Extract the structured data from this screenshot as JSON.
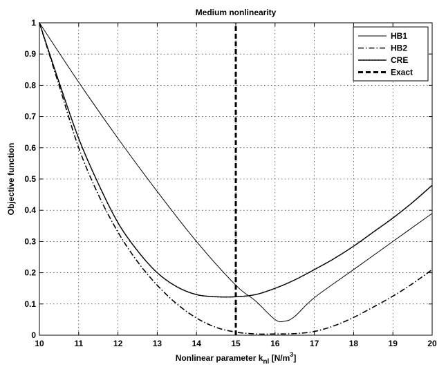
{
  "chart_data": {
    "type": "line",
    "title": "Medium nonlinearity",
    "xlabel": {
      "main": "Nonlinear parameter  k",
      "sub": "nl",
      "unit_open": " [N/m",
      "sup": "3",
      "unit_close": "]"
    },
    "ylabel": "Objective function",
    "xlim": [
      10,
      20
    ],
    "ylim": [
      0,
      1
    ],
    "x_ticks": [
      10,
      11,
      12,
      13,
      14,
      15,
      16,
      17,
      18,
      19,
      20
    ],
    "y_ticks": [
      0,
      0.1,
      0.2,
      0.3,
      0.4,
      0.5,
      0.6,
      0.7,
      0.8,
      0.9,
      1
    ],
    "x_tick_labels": [
      "10",
      "11",
      "12",
      "13",
      "14",
      "15",
      "16",
      "17",
      "18",
      "19",
      "20"
    ],
    "y_tick_labels": [
      "0",
      "0.1",
      "0.2",
      "0.3",
      "0.4",
      "0.5",
      "0.6",
      "0.7",
      "0.8",
      "0.9",
      "1"
    ],
    "grid": true,
    "legend_position": "top-right",
    "series": [
      {
        "name": "HB1",
        "style": "solid",
        "x": [
          10,
          11,
          12,
          13,
          14,
          15,
          15.5,
          16,
          16.25,
          16.5,
          17,
          18,
          19,
          20
        ],
        "y": [
          1.0,
          0.81,
          0.63,
          0.46,
          0.3,
          0.16,
          0.11,
          0.05,
          0.045,
          0.06,
          0.12,
          0.21,
          0.3,
          0.39
        ]
      },
      {
        "name": "HB2",
        "style": "dashdot",
        "x": [
          10,
          10.5,
          11,
          11.5,
          12,
          12.5,
          13,
          13.5,
          14,
          14.5,
          15,
          15.5,
          16,
          16.5,
          17,
          17.5,
          18,
          18.5,
          19,
          19.5,
          20
        ],
        "y": [
          1.0,
          0.8,
          0.6,
          0.45,
          0.33,
          0.235,
          0.16,
          0.1,
          0.055,
          0.025,
          0.01,
          0.004,
          0.004,
          0.005,
          0.012,
          0.03,
          0.057,
          0.09,
          0.125,
          0.165,
          0.21
        ]
      },
      {
        "name": "CRE",
        "style": "solid-dots",
        "x": [
          10,
          10.5,
          11,
          11.5,
          12,
          12.5,
          13,
          13.5,
          14,
          14.5,
          15,
          15.5,
          16,
          16.5,
          17,
          17.5,
          18,
          18.5,
          19,
          19.5,
          20
        ],
        "y": [
          1.0,
          0.81,
          0.63,
          0.485,
          0.36,
          0.27,
          0.2,
          0.155,
          0.13,
          0.123,
          0.123,
          0.13,
          0.15,
          0.177,
          0.21,
          0.245,
          0.285,
          0.33,
          0.375,
          0.425,
          0.48
        ]
      },
      {
        "name": "Exact",
        "style": "dashed",
        "x": [
          15,
          15
        ],
        "y": [
          0,
          1
        ]
      }
    ]
  }
}
